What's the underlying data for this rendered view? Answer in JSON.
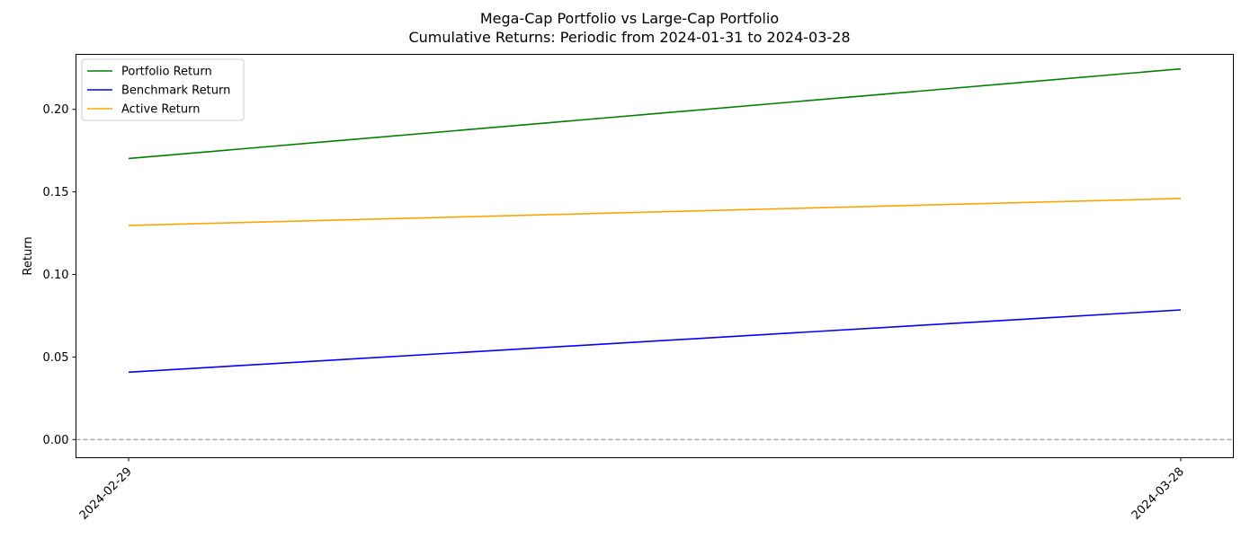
{
  "chart_data": {
    "type": "line",
    "title": "Mega-Cap Portfolio vs Large-Cap Portfolio",
    "subtitle": "Cumulative Returns: Periodic from 2024-01-31 to 2024-03-28",
    "xlabel": "",
    "ylabel": "Return",
    "x": [
      "2024-02-29",
      "2024-03-28"
    ],
    "ylim": [
      -0.011,
      0.2333
    ],
    "yticks": [
      0.0,
      0.05,
      0.1,
      0.15,
      0.2
    ],
    "ytick_labels": [
      "0.00",
      "0.05",
      "0.10",
      "0.15",
      "0.20"
    ],
    "reference_line": {
      "y": 0.0,
      "style": "dashed",
      "color": "#808080"
    },
    "legend_position": "top-left",
    "grid": false,
    "series": [
      {
        "name": "Portfolio Return",
        "color": "#008000",
        "values": [
          0.1702,
          0.2245
        ]
      },
      {
        "name": "Benchmark Return",
        "color": "#0000ff",
        "values": [
          0.0408,
          0.0785
        ]
      },
      {
        "name": "Active Return",
        "color": "#ffa500",
        "values": [
          0.1297,
          0.146
        ]
      }
    ]
  }
}
